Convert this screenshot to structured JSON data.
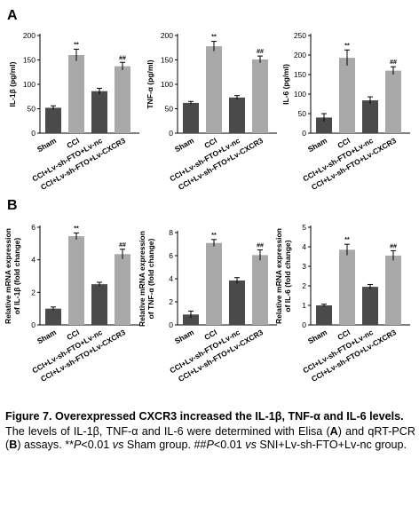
{
  "chart_data": [
    {
      "panel": "A",
      "type": "bar",
      "ylabel": "IL-1β (pg/ml)",
      "ylim": [
        0,
        200
      ],
      "yticks": [
        0,
        50,
        100,
        150,
        200
      ],
      "categories": [
        "Sham",
        "CCI",
        "CCI+Lv-sh-FTO+Lv-nc",
        "CCI+Lv-sh-FTO+Lv-CXCR3"
      ],
      "values": [
        52,
        160,
        86,
        137
      ],
      "errors": [
        4,
        12,
        6,
        8
      ],
      "annotations": [
        "",
        "**",
        "",
        "##"
      ],
      "colors": [
        "#4a4a4a",
        "#a9a9a9",
        "#4a4a4a",
        "#a9a9a9"
      ]
    },
    {
      "panel": "",
      "type": "bar",
      "ylabel": "TNF-α (pg/ml)",
      "ylim": [
        0,
        200
      ],
      "yticks": [
        0,
        50,
        100,
        150,
        200
      ],
      "categories": [
        "Sham",
        "CCI",
        "CCI+Lv-sh-FTO+Lv-nc",
        "CCI+Lv-sh-FTO+Lv-CXCR3"
      ],
      "values": [
        62,
        178,
        73,
        151
      ],
      "errors": [
        3,
        10,
        4,
        7
      ],
      "annotations": [
        "",
        "**",
        "",
        "##"
      ],
      "colors": [
        "#4a4a4a",
        "#a9a9a9",
        "#4a4a4a",
        "#a9a9a9"
      ]
    },
    {
      "panel": "",
      "type": "bar",
      "ylabel": "IL-6 (pg/ml)",
      "ylim": [
        0,
        250
      ],
      "yticks": [
        0,
        50,
        100,
        150,
        200,
        250
      ],
      "categories": [
        "Sham",
        "CCI",
        "CCI+Lv-sh-FTO+Lv-nc",
        "CCI+Lv-sh-FTO+Lv-CXCR3"
      ],
      "values": [
        40,
        193,
        84,
        160
      ],
      "errors": [
        10,
        20,
        9,
        10
      ],
      "annotations": [
        "",
        "**",
        "",
        "##"
      ],
      "colors": [
        "#4a4a4a",
        "#a9a9a9",
        "#4a4a4a",
        "#a9a9a9"
      ]
    },
    {
      "panel": "B",
      "type": "bar",
      "ylabel": "Relative mRNA expression\nof IL-1β (fold change)",
      "ylim": [
        0,
        6
      ],
      "yticks": [
        0,
        2,
        4,
        6
      ],
      "categories": [
        "Sham",
        "CCI",
        "CCI+Lv-sh-FTO+Lv-nc",
        "CCI+Lv-sh-FTO+Lv-CXCR3"
      ],
      "values": [
        1.0,
        5.45,
        2.5,
        4.35
      ],
      "errors": [
        0.1,
        0.2,
        0.12,
        0.3
      ],
      "annotations": [
        "",
        "**",
        "",
        "##"
      ],
      "colors": [
        "#4a4a4a",
        "#a9a9a9",
        "#4a4a4a",
        "#a9a9a9"
      ]
    },
    {
      "panel": "",
      "type": "bar",
      "ylabel": "Relative mRNA expression\nof TNF-α (fold change)",
      "ylim": [
        0,
        8
      ],
      "yticks": [
        0,
        2,
        4,
        6,
        8
      ],
      "categories": [
        "Sham",
        "CCI",
        "CCI+Lv-sh-FTO+Lv-nc",
        "CCI+Lv-sh-FTO+Lv-CXCR3"
      ],
      "values": [
        0.9,
        7.1,
        3.85,
        6.05
      ],
      "errors": [
        0.3,
        0.3,
        0.25,
        0.45
      ],
      "annotations": [
        "",
        "**",
        "",
        "##"
      ],
      "colors": [
        "#4a4a4a",
        "#a9a9a9",
        "#4a4a4a",
        "#a9a9a9"
      ]
    },
    {
      "panel": "",
      "type": "bar",
      "ylabel": "Relative mRNA expression\nof IL-6 (fold change)",
      "ylim": [
        0,
        5
      ],
      "yticks": [
        0,
        1,
        2,
        3,
        4,
        5
      ],
      "categories": [
        "Sham",
        "CCI",
        "CCI+Lv-sh-FTO+Lv-nc",
        "CCI+Lv-sh-FTO+Lv-CXCR3"
      ],
      "values": [
        1.0,
        3.85,
        1.95,
        3.55
      ],
      "errors": [
        0.06,
        0.28,
        0.12,
        0.25
      ],
      "annotations": [
        "",
        "**",
        "",
        "##"
      ],
      "colors": [
        "#4a4a4a",
        "#a9a9a9",
        "#4a4a4a",
        "#a9a9a9"
      ]
    }
  ],
  "caption": {
    "title": "Figure 7. Overexpressed CXCR3 increased the IL-1β, TNF-α and IL-6 levels.",
    "t1": "The levels of IL-1β, TNF-α and IL-6 were determined with Elisa (",
    "a": "A",
    "t2": ") and qRT-PCR (",
    "b": "B",
    "t3": ") assays. **",
    "p1": "P",
    "t4": "<0.01 ",
    "vs1": "vs",
    "t5": " Sham group. ##",
    "p2": "P",
    "t6": "<0.01 ",
    "vs2": "vs",
    "t7": " SNI+Lv-sh-FTO+Lv-nc group."
  }
}
